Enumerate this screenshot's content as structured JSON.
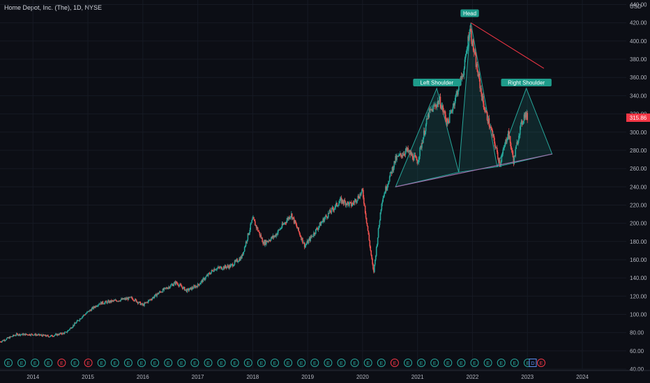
{
  "header": {
    "title": "Home Depot, Inc. (The), 1D, NYSE",
    "currency": "USD"
  },
  "colors": {
    "background": "#0c0e15",
    "up": "#26a69a",
    "down": "#ef5350",
    "pattern": "#26a69a",
    "trendline": "#f23645",
    "label_bg": "#1e9c8b",
    "price_bg": "#f23645"
  },
  "chart_data": {
    "type": "candlestick",
    "title": "Home Depot, Inc. (The), 1D, NYSE",
    "y_unit": "USD",
    "ylim": [
      40,
      445
    ],
    "xlim": [
      2013.4,
      2024.8
    ],
    "y_ticks": [
      "440.00",
      "420.00",
      "400.00",
      "380.00",
      "360.00",
      "340.00",
      "320.00",
      "300.00",
      "280.00",
      "260.00",
      "240.00",
      "220.00",
      "200.00",
      "180.00",
      "160.00",
      "140.00",
      "120.00",
      "100.00",
      "80.00",
      "60.00",
      "40.00"
    ],
    "x_ticks": [
      {
        "label": "2014",
        "x": 2014.0
      },
      {
        "label": "2015",
        "x": 2015.0
      },
      {
        "label": "2016",
        "x": 2016.0
      },
      {
        "label": "2017",
        "x": 2017.0
      },
      {
        "label": "2018",
        "x": 2018.0
      },
      {
        "label": "2019",
        "x": 2019.0
      },
      {
        "label": "2020",
        "x": 2020.0
      },
      {
        "label": "2021",
        "x": 2021.0
      },
      {
        "label": "2022",
        "x": 2022.0
      },
      {
        "label": "2023",
        "x": 2023.0
      },
      {
        "label": "2024",
        "x": 2024.0
      }
    ],
    "last_price": "315.86",
    "price_path": [
      [
        2013.4,
        70
      ],
      [
        2013.7,
        78
      ],
      [
        2014.0,
        78
      ],
      [
        2014.3,
        76
      ],
      [
        2014.6,
        80
      ],
      [
        2014.9,
        98
      ],
      [
        2015.2,
        112
      ],
      [
        2015.5,
        115
      ],
      [
        2015.8,
        118
      ],
      [
        2016.0,
        110
      ],
      [
        2016.3,
        124
      ],
      [
        2016.6,
        135
      ],
      [
        2016.8,
        126
      ],
      [
        2017.0,
        132
      ],
      [
        2017.3,
        150
      ],
      [
        2017.6,
        153
      ],
      [
        2017.8,
        163
      ],
      [
        2018.0,
        205
      ],
      [
        2018.2,
        178
      ],
      [
        2018.4,
        186
      ],
      [
        2018.7,
        210
      ],
      [
        2018.95,
        175
      ],
      [
        2019.3,
        205
      ],
      [
        2019.6,
        225
      ],
      [
        2019.8,
        220
      ],
      [
        2020.0,
        235
      ],
      [
        2020.2,
        145
      ],
      [
        2020.35,
        225
      ],
      [
        2020.6,
        270
      ],
      [
        2020.8,
        280
      ],
      [
        2021.0,
        268
      ],
      [
        2021.2,
        320
      ],
      [
        2021.4,
        335
      ],
      [
        2021.55,
        310
      ],
      [
        2021.7,
        340
      ],
      [
        2021.85,
        370
      ],
      [
        2021.95,
        415
      ],
      [
        2022.05,
        380
      ],
      [
        2022.2,
        330
      ],
      [
        2022.35,
        300
      ],
      [
        2022.5,
        265
      ],
      [
        2022.65,
        300
      ],
      [
        2022.75,
        268
      ],
      [
        2022.85,
        300
      ],
      [
        2022.95,
        320
      ],
      [
        2023.0,
        316
      ]
    ],
    "annotations": {
      "labels": [
        {
          "text": "Left Shoulder",
          "x": 2021.35,
          "y": 348
        },
        {
          "text": "Head",
          "x": 2021.95,
          "y": 424
        },
        {
          "text": "Right Shoulder",
          "x": 2022.98,
          "y": 348
        }
      ],
      "triangles": [
        [
          [
            2020.6,
            240
          ],
          [
            2021.35,
            348
          ],
          [
            2021.75,
            256
          ]
        ],
        [
          [
            2021.75,
            256
          ],
          [
            2021.97,
            420
          ],
          [
            2022.45,
            262
          ]
        ],
        [
          [
            2022.45,
            262
          ],
          [
            2022.98,
            348
          ],
          [
            2023.45,
            276
          ]
        ]
      ],
      "neckline": [
        [
          2020.6,
          240
        ],
        [
          2023.45,
          276
        ]
      ],
      "head_trendline": [
        [
          2021.97,
          420
        ],
        [
          2023.3,
          370
        ]
      ]
    },
    "events": {
      "earnings_symbols": [
        "E",
        "E",
        "E",
        "E",
        "E",
        "E",
        "E",
        "E",
        "E",
        "E",
        "E",
        "E",
        "E",
        "E",
        "E",
        "E",
        "E",
        "E",
        "E",
        "E",
        "E",
        "E",
        "E",
        "E",
        "E",
        "E",
        "E",
        "E",
        "E",
        "E",
        "E",
        "E",
        "E",
        "E",
        "E",
        "E",
        "E",
        "E",
        "E",
        "E",
        "E"
      ],
      "dividend_symbol": "D"
    }
  }
}
